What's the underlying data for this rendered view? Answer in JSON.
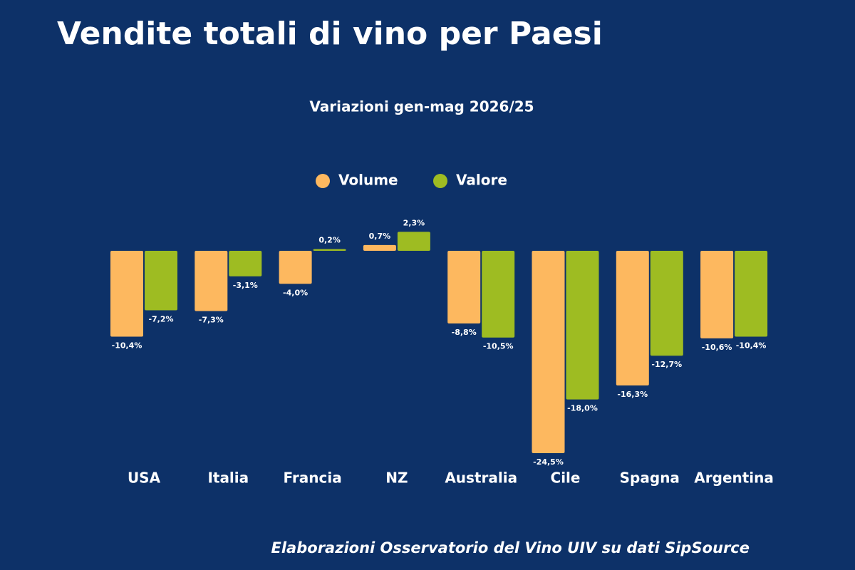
{
  "chart_data": {
    "type": "bar",
    "title": "Vendite totali di vino per Paesi",
    "subtitle": "Variazioni gen-mag 2026/25",
    "source": "Elaborazioni Osservatorio del Vino UIV su dati SipSource",
    "categories": [
      "USA",
      "Italia",
      "Francia",
      "NZ",
      "Australia",
      "Cile",
      "Spagna",
      "Argentina"
    ],
    "series": [
      {
        "name": "Volume",
        "color": "#fdb85f",
        "values": [
          -10.4,
          -7.3,
          -4.0,
          0.7,
          -8.8,
          -24.5,
          -16.3,
          -10.6
        ],
        "value_labels": [
          "-10,4%",
          "-7,3%",
          "-4,0%",
          "0,7%",
          "-8,8%",
          "-24,5%",
          "-16,3%",
          "-10,6%"
        ]
      },
      {
        "name": "Valore",
        "color": "#9ebc22",
        "values": [
          -7.2,
          -3.1,
          0.2,
          2.3,
          -10.5,
          -18.0,
          -12.7,
          -10.4
        ],
        "value_labels": [
          "-7,2%",
          "-3,1%",
          "0,2%",
          "2,3%",
          "-10,5%",
          "-18,0%",
          "-12,7%",
          "-10,4%"
        ]
      }
    ]
  }
}
